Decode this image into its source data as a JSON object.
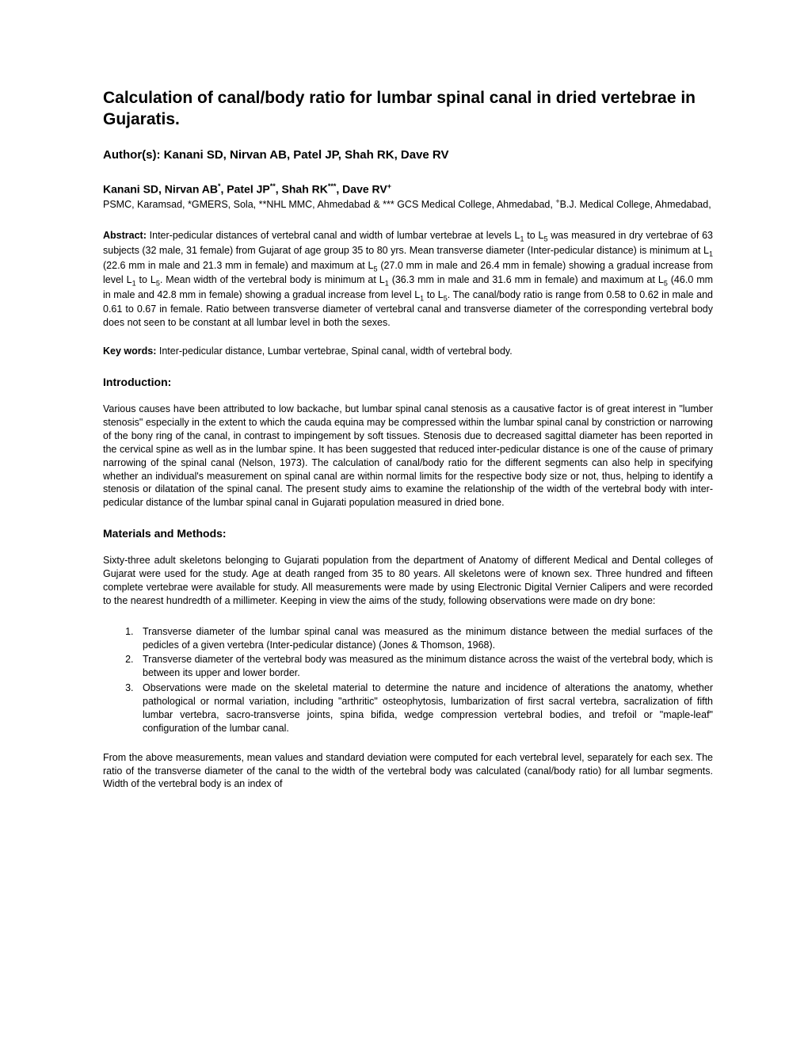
{
  "title": "Calculation of canal/body ratio for lumbar spinal canal in dried vertebrae in Gujaratis.",
  "authors_label": "Author(s): ",
  "authors_text": "Kanani SD, Nirvan AB, Patel JP, Shah RK, Dave RV",
  "authors_affil_1": "Kanani SD, Nirvan AB",
  "authors_affil_sup1": "*",
  "authors_affil_2": ", Patel JP",
  "authors_affil_sup2": "**",
  "authors_affil_3": ", Shah RK",
  "authors_affil_sup3": "***",
  "authors_affil_4": ", Dave RV",
  "authors_affil_sup4": "+",
  "affiliations_text": "PSMC, Karamsad, *GMERS, Sola, **NHL MMC, Ahmedabad & *** GCS Medical College, Ahmedabad, ",
  "affiliations_sup": "+",
  "affiliations_tail": "B.J. Medical College, Ahmedabad,",
  "abstract_label": "Abstract: ",
  "abstract_p1a": "Inter-pedicular distances of vertebral canal and width of lumbar vertebrae at levels L",
  "abstract_s1": "1",
  "abstract_p1b": " to L",
  "abstract_s2": "5",
  "abstract_p1c": " was measured in dry vertebrae of 63 subjects (32 male, 31 female) from Gujarat of age group 35 to 80 yrs. Mean transverse diameter (Inter-pedicular distance) is minimum at L",
  "abstract_s3": "1",
  "abstract_p1d": " (22.6 mm in male and 21.3 mm in female) and maximum at L",
  "abstract_s4": "5",
  "abstract_p1e": " (27.0 mm in male and 26.4 mm in female) showing a gradual increase from level L",
  "abstract_s5": "1",
  "abstract_p1f": " to L",
  "abstract_s6": "5",
  "abstract_p1g": ". Mean width of the vertebral body is minimum at L",
  "abstract_s7": "1",
  "abstract_p1h": " (36.3 mm in male and 31.6 mm in female) and maximum at L",
  "abstract_s8": "5",
  "abstract_p1i": " (46.0 mm in male and 42.8 mm in female) showing a gradual increase from level L",
  "abstract_s9": "1",
  "abstract_p1j": " to L",
  "abstract_s10": "5",
  "abstract_p1k": ". The canal/body ratio is range from 0.58 to 0.62 in male and 0.61 to 0.67 in female. Ratio between transverse diameter of vertebral canal and transverse diameter of the corresponding vertebral body does not seen to be constant at all lumbar level in both the sexes.",
  "keywords_label": "Key words: ",
  "keywords_text": "Inter-pedicular distance, Lumbar vertebrae, Spinal canal, width of vertebral body.",
  "intro_heading": "Introduction:",
  "intro_text": "Various causes have been attributed to low backache, but lumbar spinal canal stenosis as a causative factor is of great interest in \"lumber stenosis\" especially in the extent to which the cauda equina may be compressed within the lumbar spinal canal by constriction or narrowing of the bony ring of the canal, in contrast to impingement by soft tissues. Stenosis due to decreased sagittal diameter has been reported in the cervical spine as well as in the lumbar spine. It has been suggested that reduced inter-pedicular distance is one of the cause of primary narrowing of the spinal canal (Nelson, 1973). The calculation of canal/body ratio for the different segments can also help in specifying whether an individual's measurement on spinal canal are within normal limits for the respective body size or not, thus, helping to identify a stenosis or dilatation of the spinal canal. The present study aims to examine the relationship of the width of the vertebral body with inter-pedicular distance of the lumbar spinal canal in Gujarati population measured in dried bone.",
  "methods_heading": "Materials and Methods:",
  "methods_p1": "Sixty-three adult skeletons belonging to Gujarati population from the department of Anatomy of different Medical and Dental colleges of Gujarat were used for the study. Age at death ranged from 35 to 80 years. All skeletons were of known sex. Three hundred and fifteen complete vertebrae were available for study. All measurements were made by using Electronic Digital Vernier Calipers and were recorded to the nearest hundredth of a millimeter. Keeping in view the aims of the study, following observations were made on dry bone:",
  "methods_li1": "Transverse diameter of the lumbar spinal canal was measured as the minimum distance between the medial surfaces of the pedicles of a given vertebra (Inter-pedicular distance) (Jones & Thomson, 1968).",
  "methods_li2": "Transverse diameter of the vertebral body was measured as the minimum distance across the waist of the vertebral body, which is between its upper and lower border.",
  "methods_li3": "Observations were made on the skeletal material to determine the nature and incidence of alterations the anatomy, whether pathological or normal variation, including \"arthritic\" osteophytosis, lumbarization of first sacral vertebra, sacralization of fifth lumbar vertebra, sacro-transverse joints, spina bifida, wedge compression vertebral bodies, and trefoil or \"maple-leaf\" configuration of the lumbar canal.",
  "methods_p2": "From the above measurements, mean values and standard deviation were computed for each vertebral level, separately for each sex. The ratio of the transverse diameter of the canal to the width of the vertebral body was calculated (canal/body ratio) for all lumbar segments. Width of the vertebral body is an index of"
}
